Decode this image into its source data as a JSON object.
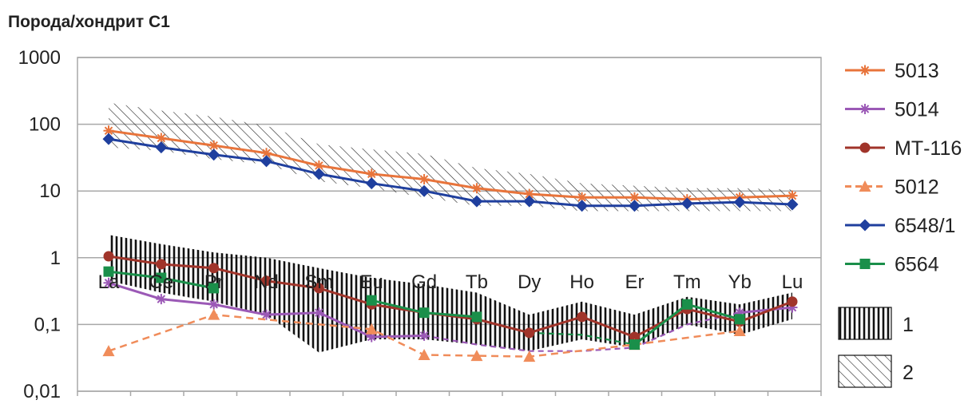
{
  "chart_data": {
    "type": "line",
    "ylabel": "Порода/хондрит С1",
    "yscale": "log",
    "ylim": [
      0.01,
      1000
    ],
    "yticks": [
      "0,01",
      "0,1",
      "1",
      "10",
      "100",
      "1000"
    ],
    "categories": [
      "La",
      "Ce",
      "Pr",
      "Nd",
      "Sm",
      "Eu",
      "Gd",
      "Tb",
      "Dy",
      "Ho",
      "Er",
      "Tm",
      "Yb",
      "Lu"
    ],
    "grid": true,
    "legend_position": "right",
    "series": [
      {
        "name": "5013",
        "color": "#e8743b",
        "marker": "star",
        "dashed": false,
        "values": [
          80,
          62,
          48,
          37,
          24,
          18,
          15,
          11,
          9,
          8,
          8,
          7.5,
          8,
          8.5
        ]
      },
      {
        "name": "5014",
        "color": "#9b59b6",
        "marker": "star",
        "dashed": false,
        "values": [
          0.42,
          0.24,
          0.2,
          0.14,
          0.15,
          0.065,
          0.068,
          null,
          null,
          null,
          null,
          null,
          0.15,
          0.18
        ]
      },
      {
        "name": "МТ-116",
        "color": "#a0342a",
        "marker": "circle",
        "dashed": false,
        "values": [
          1.05,
          0.8,
          0.7,
          0.45,
          0.35,
          0.2,
          0.15,
          0.12,
          0.075,
          0.13,
          0.065,
          0.17,
          0.11,
          0.22
        ]
      },
      {
        "name": "5012",
        "color": "#f08c5a",
        "marker": "triangle",
        "dashed": true,
        "values": [
          0.04,
          null,
          0.14,
          null,
          null,
          0.085,
          0.035,
          0.034,
          0.033,
          null,
          0.05,
          null,
          0.08,
          null
        ]
      },
      {
        "name": "6548/1",
        "color": "#1f3f9e",
        "marker": "diamond",
        "dashed": false,
        "values": [
          60,
          45,
          35,
          28,
          18,
          13,
          10,
          7,
          7,
          6,
          6,
          6.5,
          6.8,
          6.3
        ]
      },
      {
        "name": "6564",
        "color": "#1a8f4a",
        "marker": "square",
        "dashed": false,
        "values": [
          0.62,
          0.5,
          0.35,
          null,
          null,
          0.23,
          0.15,
          0.13,
          null,
          null,
          0.05,
          0.2,
          0.12,
          null
        ]
      }
    ],
    "dashed_segments": [
      {
        "series": "5014",
        "from": "Gd",
        "to": "Yb",
        "values": [
          0.068,
          0.05,
          0.04,
          0.04,
          0.045,
          0.1,
          0.15
        ]
      },
      {
        "series": "6564",
        "from": "Dy",
        "to": "Er",
        "values": [
          0.075,
          0.07,
          0.05
        ]
      }
    ],
    "bands": [
      {
        "name": "1",
        "pattern": "vertical",
        "upper": [
          2.2,
          1.6,
          1.2,
          1.0,
          0.7,
          0.5,
          0.4,
          0.3,
          0.14,
          0.22,
          0.14,
          0.26,
          0.2,
          0.3
        ],
        "lower": [
          0.45,
          0.3,
          0.22,
          0.14,
          0.038,
          0.06,
          0.06,
          0.05,
          0.04,
          0.06,
          0.045,
          0.1,
          0.07,
          0.12
        ]
      },
      {
        "name": "2",
        "pattern": "diagonal",
        "upper": [
          210,
          160,
          130,
          95,
          50,
          42,
          36,
          22,
          18,
          13,
          12,
          11,
          11,
          10.5
        ],
        "lower": [
          45,
          40,
          30,
          25,
          14,
          11,
          8,
          6,
          6,
          5,
          5,
          5,
          5,
          5
        ]
      }
    ],
    "legend_extra": [
      "1",
      "2"
    ]
  }
}
